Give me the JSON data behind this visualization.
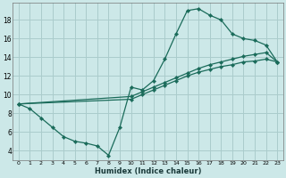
{
  "xlabel": "Humidex (Indice chaleur)",
  "bg_color": "#cce8e8",
  "grid_color": "#aacccc",
  "line_color": "#1a6b5a",
  "xlim": [
    -0.5,
    23.5
  ],
  "ylim": [
    3.0,
    19.8
  ],
  "xticks": [
    0,
    1,
    2,
    3,
    4,
    5,
    6,
    7,
    8,
    9,
    10,
    11,
    12,
    13,
    14,
    15,
    16,
    17,
    18,
    19,
    20,
    21,
    22,
    23
  ],
  "yticks": [
    4,
    6,
    8,
    10,
    12,
    14,
    16,
    18
  ],
  "series1_x": [
    0,
    1,
    2,
    3,
    4,
    5,
    6,
    7,
    8,
    9,
    10,
    11,
    12,
    13,
    14,
    15,
    16,
    17,
    18,
    19,
    20,
    21,
    22,
    23
  ],
  "series1_y": [
    9.0,
    8.5,
    7.5,
    6.5,
    5.5,
    5.0,
    4.8,
    4.5,
    3.5,
    6.5,
    10.8,
    10.5,
    11.5,
    13.8,
    16.5,
    19.0,
    19.2,
    18.5,
    18.0,
    16.5,
    16.0,
    15.8,
    15.3,
    13.5
  ],
  "series2_x": [
    0,
    10,
    11,
    12,
    13,
    14,
    15,
    16,
    17,
    18,
    19,
    20,
    21,
    22,
    23
  ],
  "series2_y": [
    9.0,
    9.5,
    10.0,
    10.5,
    11.0,
    11.5,
    12.0,
    12.4,
    12.7,
    13.0,
    13.2,
    13.5,
    13.6,
    13.8,
    13.5
  ],
  "series3_x": [
    0,
    10,
    11,
    12,
    13,
    14,
    15,
    16,
    17,
    18,
    19,
    20,
    21,
    22,
    23
  ],
  "series3_y": [
    9.0,
    9.8,
    10.3,
    10.8,
    11.3,
    11.8,
    12.3,
    12.8,
    13.2,
    13.5,
    13.8,
    14.1,
    14.3,
    14.5,
    13.5
  ]
}
